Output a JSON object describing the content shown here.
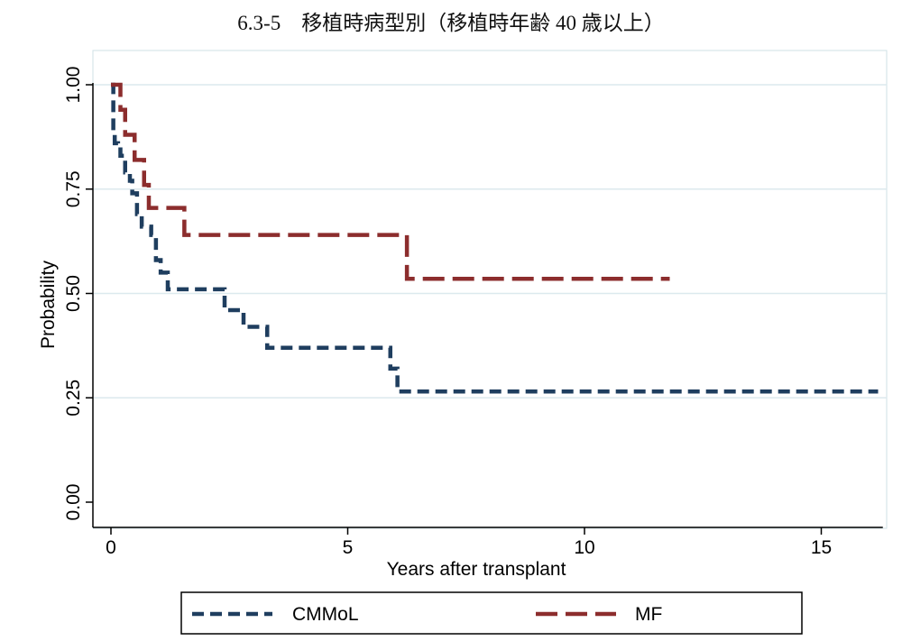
{
  "title": "6.3-5　移植時病型別（移植時年齢 40 歳以上）",
  "chart_data": {
    "type": "line",
    "step": true,
    "title": "6.3-5　移植時病型別（移植時年齢 40 歳以上）",
    "xlabel": "Years after transplant",
    "ylabel": "Probability",
    "xlim": [
      0,
      16.3
    ],
    "ylim": [
      0,
      1
    ],
    "x_ticks": [
      0,
      5,
      10,
      15
    ],
    "x_tick_labels": [
      "0",
      "5",
      "10",
      "15"
    ],
    "y_ticks": [
      0,
      0.25,
      0.5,
      0.75,
      1
    ],
    "y_tick_labels": [
      "0.00",
      "0.25",
      "0.50",
      "0.75",
      "1.00"
    ],
    "grid": "horizontal",
    "legend_position": "bottom",
    "series": [
      {
        "name": "CMMoL",
        "color": "#1f3e5f",
        "dash": "short",
        "x": [
          0,
          0.05,
          0.08,
          0.15,
          0.2,
          0.3,
          0.4,
          0.45,
          0.55,
          0.65,
          0.85,
          0.95,
          1.05,
          1.2,
          2.4,
          2.8,
          3.3,
          5.9,
          6.05,
          16.2
        ],
        "y": [
          1,
          0.88,
          0.86,
          0.85,
          0.83,
          0.79,
          0.77,
          0.74,
          0.69,
          0.66,
          0.64,
          0.58,
          0.55,
          0.51,
          0.46,
          0.42,
          0.37,
          0.32,
          0.265,
          0.265
        ]
      },
      {
        "name": "MF",
        "color": "#8c2d2d",
        "dash": "long",
        "x": [
          0,
          0.2,
          0.3,
          0.5,
          0.7,
          0.8,
          1.55,
          6.25,
          11.8
        ],
        "y": [
          1,
          0.94,
          0.88,
          0.82,
          0.76,
          0.705,
          0.64,
          0.535,
          0.535
        ]
      }
    ]
  }
}
